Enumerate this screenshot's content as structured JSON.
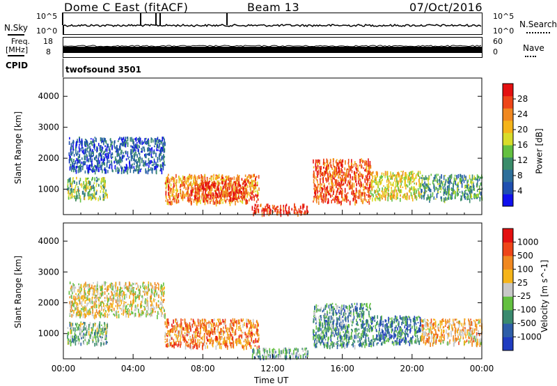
{
  "header": {
    "station": "Dome C East (fitACF)",
    "beam": "Beam 13",
    "date": "07/Oct/2016"
  },
  "top_panels": {
    "nsky_label": "N.Sky",
    "nsky_ticks": [
      "10^5",
      "10^0"
    ],
    "nsearch_label": "N.Search",
    "nsearch_ticks": [
      "10^5",
      "10^0"
    ],
    "freq_label": "Freq.",
    "freq_unit": "[MHz]",
    "freq_ticks": [
      "18",
      "8"
    ],
    "nave_label": "Nave",
    "nave_ticks": [
      "60",
      "0"
    ],
    "cpid_label": "CPID",
    "cpid_value": "twofsound 3501"
  },
  "chart_data": [
    {
      "type": "heatmap",
      "panel": "power",
      "ylabel": "Slant Range [km]",
      "yticks": [
        "1000",
        "2000",
        "3000",
        "4000"
      ],
      "ylim": [
        180,
        4590
      ],
      "xlim_hours": [
        0,
        24
      ],
      "colorbar_label": "Power [dB]",
      "colorbar_ticks": [
        "4",
        "8",
        "12",
        "16",
        "20",
        "24",
        "28"
      ],
      "colors": [
        "#1010ee",
        "#1f4fb0",
        "#2e6f9a",
        "#3a8c6a",
        "#63c040",
        "#d8dc2a",
        "#f5b41a",
        "#f08820",
        "#ee4518",
        "#e41010"
      ],
      "regions": [
        {
          "t": [
            0.2,
            2.5
          ],
          "r": [
            700,
            1400
          ],
          "level": 0.45
        },
        {
          "t": [
            0.3,
            5.8
          ],
          "r": [
            1600,
            2700
          ],
          "level": 0.2
        },
        {
          "t": [
            5.8,
            11.2
          ],
          "r": [
            600,
            1500
          ],
          "level": 0.75
        },
        {
          "t": [
            7.5,
            10.5
          ],
          "r": [
            700,
            1300
          ],
          "level": 0.9
        },
        {
          "t": [
            10.8,
            14.0
          ],
          "r": [
            250,
            550
          ],
          "level": 0.9
        },
        {
          "t": [
            14.3,
            17.6
          ],
          "r": [
            600,
            2000
          ],
          "level": 0.85
        },
        {
          "t": [
            17.6,
            20.5
          ],
          "r": [
            700,
            1600
          ],
          "level": 0.6
        },
        {
          "t": [
            20.5,
            24.0
          ],
          "r": [
            700,
            1500
          ],
          "level": 0.35
        }
      ]
    },
    {
      "type": "heatmap",
      "panel": "velocity",
      "ylabel": "Slant Range [km]",
      "yticks": [
        "1000",
        "2000",
        "3000",
        "4000"
      ],
      "ylim": [
        180,
        4590
      ],
      "xlim_hours": [
        0,
        24
      ],
      "xticks": [
        "00:00",
        "04:00",
        "08:00",
        "12:00",
        "16:00",
        "20:00",
        "00:00"
      ],
      "xlabel": "Time UT",
      "colorbar_label": "Velocity [m s^-1]",
      "colorbar_ticks": [
        "1000",
        "500",
        "100",
        "25",
        "-25",
        "-100",
        "-500",
        "-1000"
      ],
      "colors": [
        "#1f3cc0",
        "#2e5ea8",
        "#3a8a6e",
        "#63c040",
        "#c8c8c8",
        "#f5b41a",
        "#f08820",
        "#ee4518",
        "#e41010"
      ],
      "regions": [
        {
          "t": [
            0.2,
            2.5
          ],
          "r": [
            700,
            1400
          ],
          "level": 0.4
        },
        {
          "t": [
            0.3,
            5.8
          ],
          "r": [
            1600,
            2700
          ],
          "level": 0.55
        },
        {
          "t": [
            5.8,
            11.2
          ],
          "r": [
            600,
            1500
          ],
          "level": 0.72
        },
        {
          "t": [
            10.8,
            14.0
          ],
          "r": [
            250,
            550
          ],
          "level": 0.35
        },
        {
          "t": [
            14.3,
            17.6
          ],
          "r": [
            600,
            2000
          ],
          "level": 0.3
        },
        {
          "t": [
            17.6,
            20.5
          ],
          "r": [
            700,
            1600
          ],
          "level": 0.22
        },
        {
          "t": [
            20.5,
            24.0
          ],
          "r": [
            700,
            1500
          ],
          "level": 0.62
        }
      ]
    }
  ]
}
